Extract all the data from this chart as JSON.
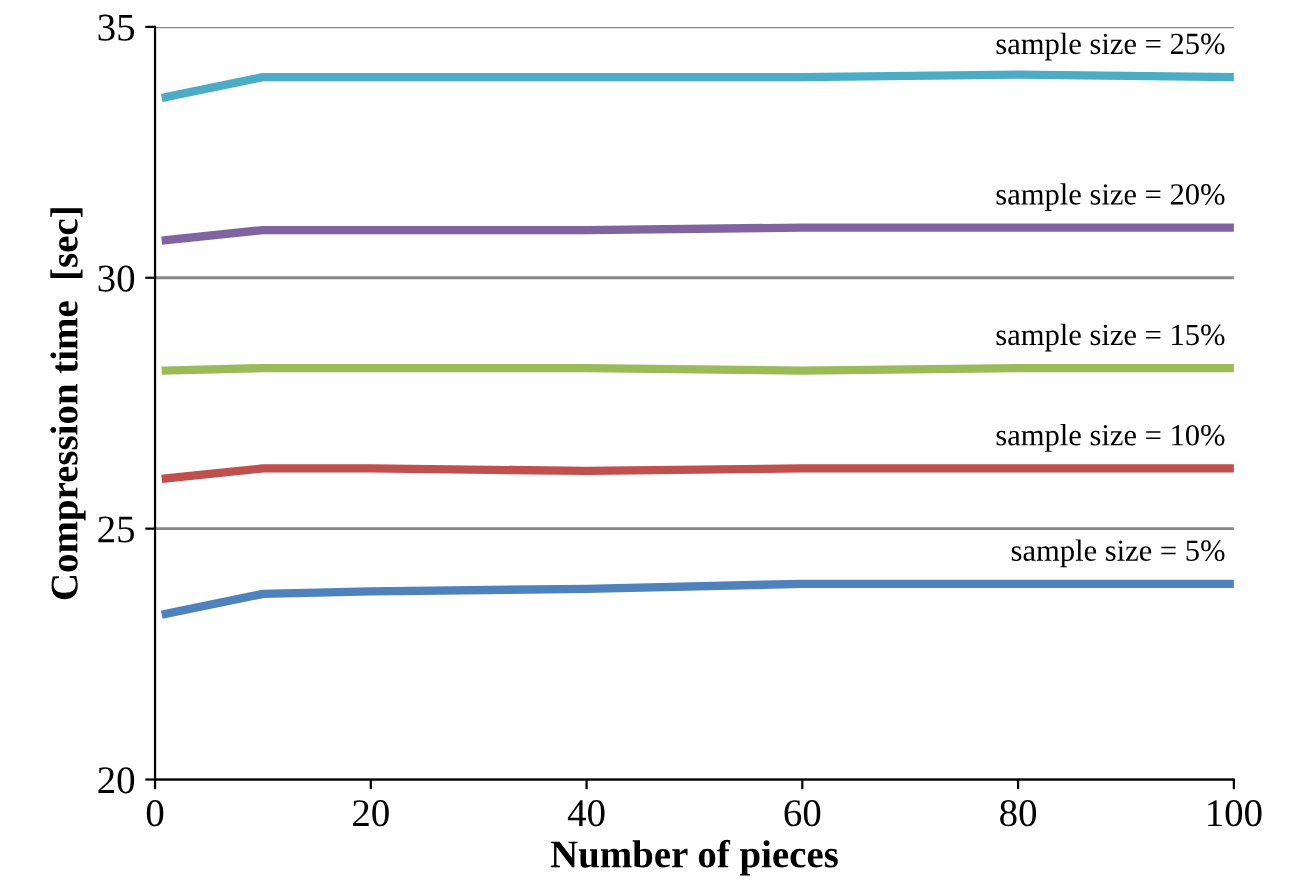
{
  "chart_data": {
    "type": "line",
    "xlabel": "Number of pieces",
    "ylabel": "Compression time  [sec]",
    "x": [
      1,
      10,
      20,
      40,
      60,
      80,
      100
    ],
    "series": [
      {
        "name": "sample size = 5%",
        "color": "#4f81bd",
        "values": [
          23.3,
          23.7,
          23.75,
          23.8,
          23.9,
          23.9,
          23.9
        ]
      },
      {
        "name": "sample size = 10%",
        "color": "#c0504d",
        "values": [
          26.0,
          26.2,
          26.2,
          26.15,
          26.2,
          26.2,
          26.2
        ]
      },
      {
        "name": "sample size = 15%",
        "color": "#9bbb59",
        "values": [
          28.15,
          28.2,
          28.2,
          28.2,
          28.15,
          28.2,
          28.2
        ]
      },
      {
        "name": "sample size = 20%",
        "color": "#8064a2",
        "values": [
          30.75,
          30.95,
          30.95,
          30.95,
          31.0,
          31.0,
          31.0
        ]
      },
      {
        "name": "sample size = 25%",
        "color": "#4bacc6",
        "values": [
          33.6,
          34.0,
          34.0,
          34.0,
          34.0,
          34.05,
          34.0
        ]
      }
    ],
    "xlim": [
      0,
      100
    ],
    "xticks": [
      0,
      20,
      40,
      60,
      80,
      100
    ],
    "ylim": [
      20,
      35
    ],
    "yticks": [
      20,
      25,
      30,
      35
    ],
    "grid": "y",
    "legend": false,
    "marker": "none",
    "line_style": "solid"
  }
}
